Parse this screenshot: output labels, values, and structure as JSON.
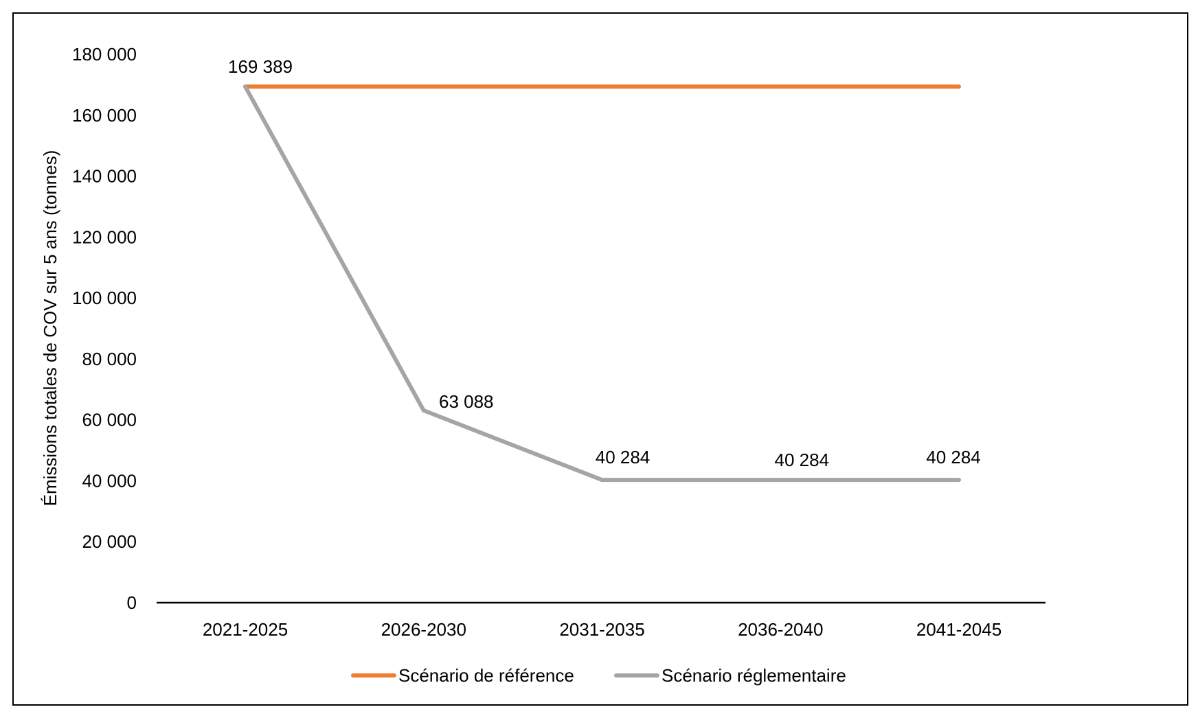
{
  "chart_data": {
    "type": "line",
    "title": "",
    "xlabel": "",
    "ylabel": "Émissions totales  de COV sur 5 ans (tonnes)",
    "categories": [
      "2021-2025",
      "2026-2030",
      "2031-2035",
      "2036-2040",
      "2041-2045"
    ],
    "ylim": [
      0,
      180000
    ],
    "yticks": [
      {
        "value": 0,
        "label": "0"
      },
      {
        "value": 20000,
        "label": "20 000"
      },
      {
        "value": 40000,
        "label": "40 000"
      },
      {
        "value": 60000,
        "label": "60 000"
      },
      {
        "value": 80000,
        "label": "80 000"
      },
      {
        "value": 100000,
        "label": "100 000"
      },
      {
        "value": 120000,
        "label": "120 000"
      },
      {
        "value": 140000,
        "label": "140 000"
      },
      {
        "value": 160000,
        "label": "160 000"
      },
      {
        "value": 180000,
        "label": "180 000"
      }
    ],
    "grid": false,
    "legend_position": "bottom",
    "series": [
      {
        "name": "Scénario de référence",
        "color": "#ED7D31",
        "values": [
          169389,
          169389,
          169389,
          169389,
          169389
        ]
      },
      {
        "name": "Scénario réglementaire",
        "color": "#A5A5A5",
        "values": [
          169389,
          63088,
          40284,
          40284,
          40284
        ]
      }
    ],
    "data_labels": [
      {
        "series": 1,
        "index": 0,
        "text": "169 389"
      },
      {
        "series": 1,
        "index": 1,
        "text": "63 088"
      },
      {
        "series": 1,
        "index": 2,
        "text": "40 284"
      },
      {
        "series": 1,
        "index": 3,
        "text": "40 284"
      },
      {
        "series": 1,
        "index": 4,
        "text": "40 284"
      }
    ]
  }
}
